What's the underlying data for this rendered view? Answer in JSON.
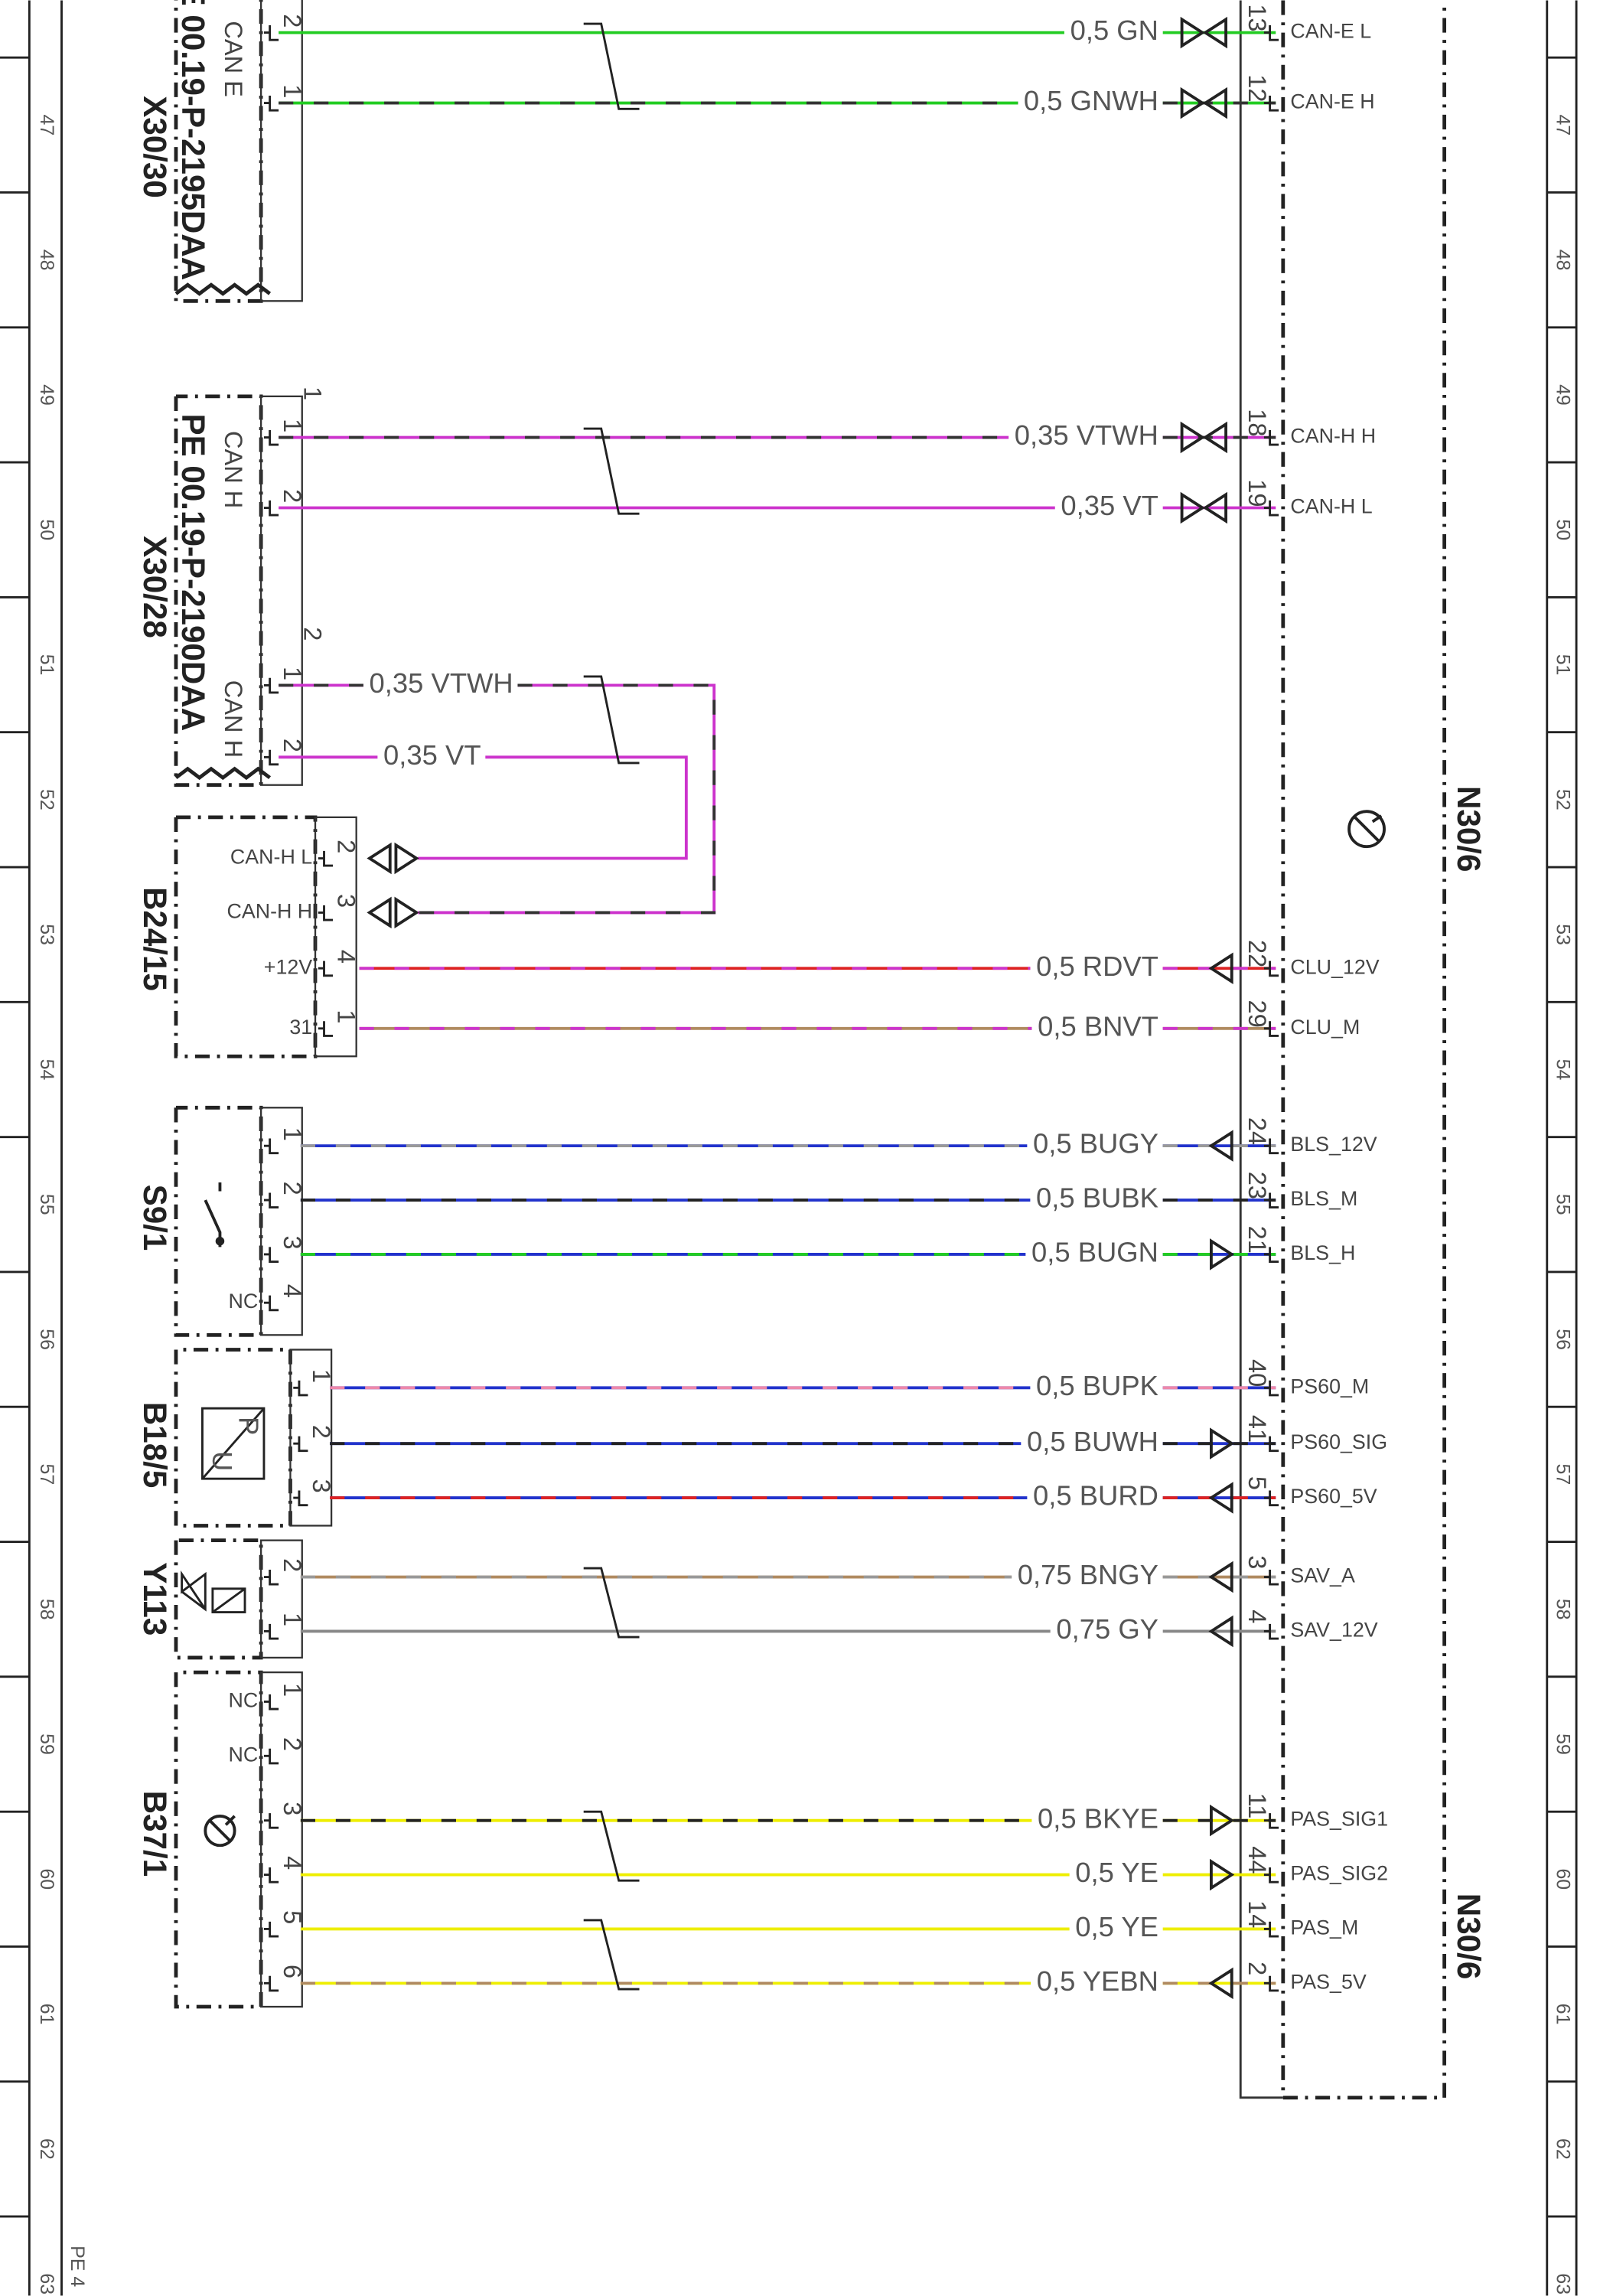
{
  "grid": {
    "numbers": [
      "47",
      "48",
      "49",
      "50",
      "51",
      "52",
      "53",
      "54",
      "55",
      "56",
      "57",
      "58",
      "59",
      "60",
      "61",
      "62",
      "63"
    ],
    "footer": "PE 4"
  },
  "module": {
    "name": "N30/6"
  },
  "components": [
    {
      "name": "X30/30",
      "doc": "E 00.19-P-2195DAA",
      "bus": [
        "CAN E"
      ],
      "pins": [
        {
          "num": "2"
        },
        {
          "num": "1"
        }
      ]
    },
    {
      "name": "X30/28",
      "doc": "PE 00.19-P-2190DAA",
      "bus": [
        "CAN H",
        "CAN H"
      ],
      "index": [
        "1",
        "2"
      ],
      "pins": [
        {
          "num": "1"
        },
        {
          "num": "2"
        },
        {
          "num": "1"
        },
        {
          "num": "2"
        }
      ]
    },
    {
      "name": "B24/15",
      "pins": [
        {
          "num": "2",
          "name": "CAN-H L"
        },
        {
          "num": "3",
          "name": "CAN-H H"
        },
        {
          "num": "4",
          "name": "+12V"
        },
        {
          "num": "1",
          "name": "31"
        }
      ]
    },
    {
      "name": "S9/1",
      "pins": [
        {
          "num": "1"
        },
        {
          "num": "2"
        },
        {
          "num": "3"
        },
        {
          "num": "4",
          "name": "NC"
        }
      ]
    },
    {
      "name": "B18/5",
      "symbol": [
        "P",
        "U"
      ],
      "pins": [
        {
          "num": "1"
        },
        {
          "num": "2"
        },
        {
          "num": "3"
        }
      ]
    },
    {
      "name": "Y113",
      "pins": [
        {
          "num": "2"
        },
        {
          "num": "1"
        }
      ]
    },
    {
      "name": "B37/1",
      "pins": [
        {
          "num": "1",
          "name": "NC"
        },
        {
          "num": "2",
          "name": "NC"
        },
        {
          "num": "3"
        },
        {
          "num": "4"
        },
        {
          "num": "5"
        },
        {
          "num": "6"
        }
      ]
    }
  ],
  "wires": [
    {
      "label": "0,5 GN",
      "colors": [
        "#22cc22"
      ],
      "to_pin": "13",
      "signal": "CAN-E L",
      "arrow": "both"
    },
    {
      "label": "0,5 GNWH",
      "colors": [
        "#22cc22",
        "#333333"
      ],
      "to_pin": "12",
      "signal": "CAN-E H",
      "arrow": "both"
    },
    {
      "label": "0,35 VTWH",
      "colors": [
        "#cc33cc",
        "#333333"
      ],
      "to_pin": "18",
      "signal": "CAN-H H",
      "arrow": "both"
    },
    {
      "label": "0,35 VT",
      "colors": [
        "#cc33cc"
      ],
      "to_pin": "19",
      "signal": "CAN-H L",
      "arrow": "both"
    },
    {
      "label": "0,35 VTWH",
      "colors": [
        "#cc33cc",
        "#333333"
      ]
    },
    {
      "label": "0,35 VT",
      "colors": [
        "#cc33cc"
      ]
    },
    {
      "label": "0,5 RDVT",
      "colors": [
        "#dd2222",
        "#cc33cc"
      ],
      "to_pin": "22",
      "signal": "CLU_12V",
      "arrow": "left"
    },
    {
      "label": "0,5 BNVT",
      "colors": [
        "#b08a60",
        "#cc33cc"
      ],
      "to_pin": "29",
      "signal": "CLU_M"
    },
    {
      "label": "0,5 BUGY",
      "colors": [
        "#2233cc",
        "#999999"
      ],
      "to_pin": "24",
      "signal": "BLS_12V",
      "arrow": "left"
    },
    {
      "label": "0,5 BUBK",
      "colors": [
        "#2233cc",
        "#222222"
      ],
      "to_pin": "23",
      "signal": "BLS_M"
    },
    {
      "label": "0,5 BUGN",
      "colors": [
        "#2233cc",
        "#22cc22"
      ],
      "to_pin": "21",
      "signal": "BLS_H",
      "arrow": "right"
    },
    {
      "label": "0,5 BUPK",
      "colors": [
        "#2233cc",
        "#ee88aa"
      ],
      "to_pin": "40",
      "signal": "PS60_M"
    },
    {
      "label": "0,5 BUWH",
      "colors": [
        "#2233cc",
        "#222222"
      ],
      "to_pin": "41",
      "signal": "PS60_SIG",
      "arrow": "right"
    },
    {
      "label": "0,5 BURD",
      "colors": [
        "#2233cc",
        "#dd2222"
      ],
      "to_pin": "5",
      "signal": "PS60_5V",
      "arrow": "left"
    },
    {
      "label": "0,75 BNGY",
      "colors": [
        "#b08a60",
        "#999999"
      ],
      "to_pin": "3",
      "signal": "SAV_A",
      "arrow": "left"
    },
    {
      "label": "0,75 GY",
      "colors": [
        "#888888"
      ],
      "to_pin": "4",
      "signal": "SAV_12V",
      "arrow": "left"
    },
    {
      "label": "0,5 BKYE",
      "colors": [
        "#eeee00",
        "#222222"
      ],
      "to_pin": "11",
      "signal": "PAS_SIG1",
      "arrow": "right"
    },
    {
      "label": "0,5 YE",
      "colors": [
        "#eeee00"
      ],
      "to_pin": "44",
      "signal": "PAS_SIG2",
      "arrow": "right"
    },
    {
      "label": "0,5 YE",
      "colors": [
        "#eeee00"
      ],
      "to_pin": "14",
      "signal": "PAS_M"
    },
    {
      "label": "0,5 YEBN",
      "colors": [
        "#eeee00",
        "#b08a60"
      ],
      "to_pin": "2",
      "signal": "PAS_5V",
      "arrow": "left"
    }
  ]
}
